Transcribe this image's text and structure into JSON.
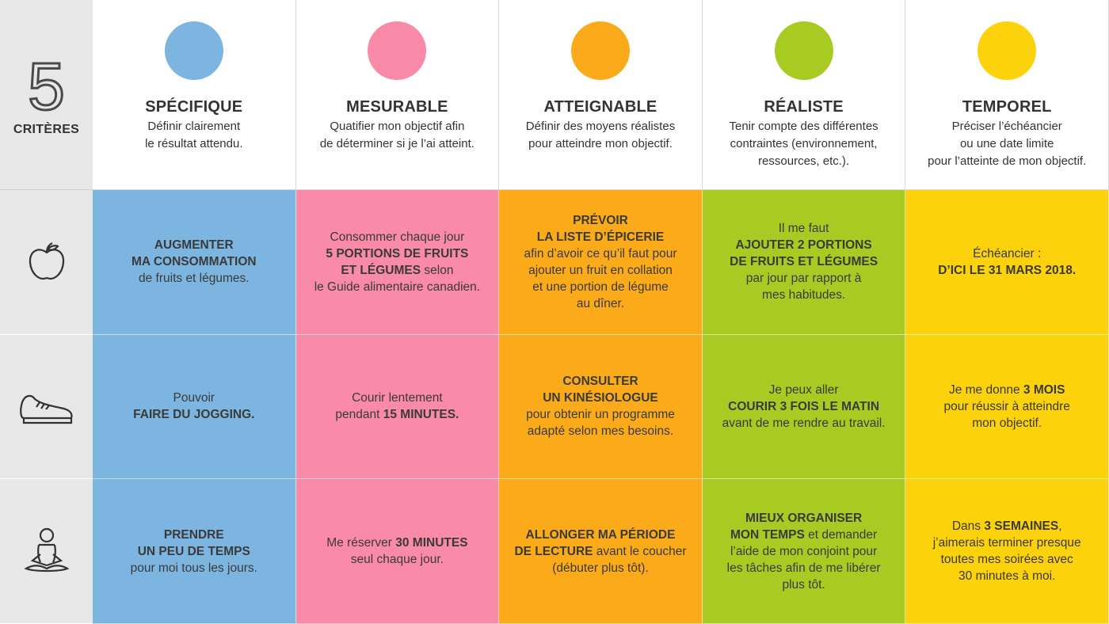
{
  "header": {
    "number": "5",
    "label": "CRITÈRES",
    "columns": [
      {
        "title": "SPÉCIFIQUE",
        "description": [
          "Définir clairement",
          "le résultat attendu."
        ],
        "color": "#7db5e1"
      },
      {
        "title": "MESURABLE",
        "description": [
          "Quatifier mon objectif afin",
          "de déterminer si je l’ai atteint."
        ],
        "color": "#f98aa8"
      },
      {
        "title": "ATTEIGNABLE",
        "description": [
          "Définir des moyens réalistes",
          "pour atteindre mon objectif."
        ],
        "color": "#fbab1a"
      },
      {
        "title": "RÉALISTE",
        "description": [
          "Tenir compte des différentes",
          "contraintes (environnement,",
          "ressources, etc.)."
        ],
        "color": "#a7cb22"
      },
      {
        "title": "TEMPOREL",
        "description": [
          "Préciser l’échéancier",
          "ou une date limite",
          "pour l’atteinte de mon objectif."
        ],
        "color": "#fbd20b"
      }
    ]
  },
  "rows": [
    {
      "cells": [
        [
          [
            {
              "text": "AUGMENTER",
              "bold": true
            }
          ],
          [
            {
              "text": "MA CONSOMMATION",
              "bold": true
            }
          ],
          [
            {
              "text": "de fruits et légumes.",
              "bold": false
            }
          ]
        ],
        [
          [
            {
              "text": "Consommer chaque jour",
              "bold": false
            }
          ],
          [
            {
              "text": "5 PORTIONS DE FRUITS",
              "bold": true
            }
          ],
          [
            {
              "text": "ET LÉGUMES",
              "bold": true
            },
            {
              "text": " selon",
              "bold": false
            }
          ],
          [
            {
              "text": "le Guide alimentaire canadien.",
              "bold": false
            }
          ]
        ],
        [
          [
            {
              "text": "PRÉVOIR",
              "bold": true
            }
          ],
          [
            {
              "text": "LA LISTE D’ÉPICERIE",
              "bold": true
            }
          ],
          [
            {
              "text": "afin d’avoir ce qu’il faut pour",
              "bold": false
            }
          ],
          [
            {
              "text": "ajouter un fruit en collation",
              "bold": false
            }
          ],
          [
            {
              "text": "et une portion de légume",
              "bold": false
            }
          ],
          [
            {
              "text": "au dîner.",
              "bold": false
            }
          ]
        ],
        [
          [
            {
              "text": "Il me faut",
              "bold": false
            }
          ],
          [
            {
              "text": "AJOUTER 2 PORTIONS",
              "bold": true
            }
          ],
          [
            {
              "text": "DE FRUITS ET LÉGUMES",
              "bold": true
            }
          ],
          [
            {
              "text": "par jour par rapport à",
              "bold": false
            }
          ],
          [
            {
              "text": "mes habitudes.",
              "bold": false
            }
          ]
        ],
        [
          [
            {
              "text": "Échéancier :",
              "bold": false
            }
          ],
          [
            {
              "text": "D’ICI LE 31 MARS 2018.",
              "bold": true
            }
          ]
        ]
      ]
    },
    {
      "cells": [
        [
          [
            {
              "text": "Pouvoir",
              "bold": false
            }
          ],
          [
            {
              "text": "FAIRE DU JOGGING.",
              "bold": true
            }
          ]
        ],
        [
          [
            {
              "text": "Courir lentement",
              "bold": false
            }
          ],
          [
            {
              "text": "pendant ",
              "bold": false
            },
            {
              "text": "15 MINUTES.",
              "bold": true
            }
          ]
        ],
        [
          [
            {
              "text": "CONSULTER",
              "bold": true
            }
          ],
          [
            {
              "text": "UN KINÉSIOLOGUE",
              "bold": true
            }
          ],
          [
            {
              "text": "pour obtenir un programme",
              "bold": false
            }
          ],
          [
            {
              "text": "adapté selon mes besoins.",
              "bold": false
            }
          ]
        ],
        [
          [
            {
              "text": "Je peux aller",
              "bold": false
            }
          ],
          [
            {
              "text": "COURIR 3 FOIS LE MATIN",
              "bold": true
            }
          ],
          [
            {
              "text": "avant de me rendre au travail.",
              "bold": false
            }
          ]
        ],
        [
          [
            {
              "text": "Je me donne ",
              "bold": false
            },
            {
              "text": "3 MOIS",
              "bold": true
            }
          ],
          [
            {
              "text": "pour réussir à atteindre",
              "bold": false
            }
          ],
          [
            {
              "text": "mon objectif.",
              "bold": false
            }
          ]
        ]
      ]
    },
    {
      "cells": [
        [
          [
            {
              "text": "PRENDRE",
              "bold": true
            }
          ],
          [
            {
              "text": "UN PEU DE TEMPS",
              "bold": true
            }
          ],
          [
            {
              "text": "pour moi tous les jours.",
              "bold": false
            }
          ]
        ],
        [
          [
            {
              "text": "Me réserver ",
              "bold": false
            },
            {
              "text": "30 MINUTES",
              "bold": true
            }
          ],
          [
            {
              "text": "seul chaque jour.",
              "bold": false
            }
          ]
        ],
        [
          [
            {
              "text": "ALLONGER MA PÉRIODE",
              "bold": true
            }
          ],
          [
            {
              "text": "DE LECTURE",
              "bold": true
            },
            {
              "text": " avant le coucher",
              "bold": false
            }
          ],
          [
            {
              "text": "(débuter plus tôt).",
              "bold": false
            }
          ]
        ],
        [
          [
            {
              "text": "MIEUX ORGANISER",
              "bold": true
            }
          ],
          [
            {
              "text": "MON TEMPS",
              "bold": true
            },
            {
              "text": " et demander",
              "bold": false
            }
          ],
          [
            {
              "text": "l’aide de mon conjoint pour",
              "bold": false
            }
          ],
          [
            {
              "text": "les tâches afin de me libérer",
              "bold": false
            }
          ],
          [
            {
              "text": "plus tôt.",
              "bold": false
            }
          ]
        ],
        [
          [
            {
              "text": "Dans ",
              "bold": false
            },
            {
              "text": "3 SEMAINES",
              "bold": true
            },
            {
              "text": ",",
              "bold": false
            }
          ],
          [
            {
              "text": "j’aimerais terminer presque",
              "bold": false
            }
          ],
          [
            {
              "text": "toutes mes soirées avec",
              "bold": false
            }
          ],
          [
            {
              "text": "30 minutes à moi.",
              "bold": false
            }
          ]
        ]
      ]
    }
  ]
}
